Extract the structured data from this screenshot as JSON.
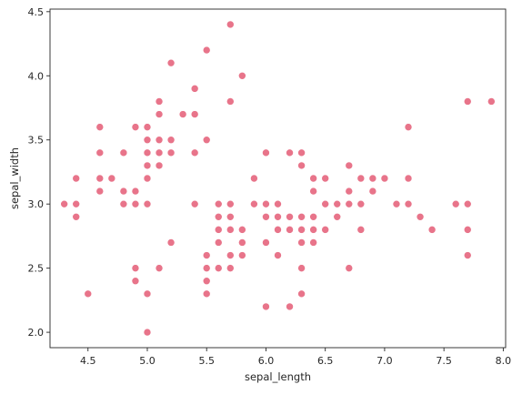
{
  "chart_data": {
    "type": "scatter",
    "xlabel": "sepal_length",
    "ylabel": "sepal_width",
    "xlim": [
      4.18,
      8.02
    ],
    "ylim": [
      1.88,
      4.52
    ],
    "xticks": [
      "4.5",
      "5.0",
      "5.5",
      "6.0",
      "6.5",
      "7.0",
      "7.5",
      "8.0"
    ],
    "yticks": [
      "2.0",
      "2.5",
      "3.0",
      "3.5",
      "4.0",
      "4.5"
    ],
    "grid": false,
    "marker_color": "#e8748a",
    "series": [
      {
        "x": [
          5.1,
          4.9,
          4.7,
          4.6,
          5.0,
          5.4,
          4.6,
          5.0,
          4.4,
          4.9,
          5.4,
          4.8,
          4.8,
          4.3,
          5.8,
          5.7,
          5.4,
          5.1,
          5.7,
          5.1,
          5.4,
          5.1,
          4.6,
          5.1,
          4.8,
          5.0,
          5.0,
          5.2,
          5.2,
          4.7,
          4.8,
          5.4,
          5.2,
          5.5,
          4.9,
          5.0,
          5.5,
          4.9,
          4.4,
          5.1,
          5.0,
          4.5,
          4.4,
          5.0,
          5.1,
          4.8,
          5.1,
          4.6,
          5.3,
          5.0,
          7.0,
          6.4,
          6.9,
          5.5,
          6.5,
          5.7,
          6.3,
          4.9,
          6.6,
          5.2,
          5.0,
          5.9,
          6.0,
          6.1,
          5.6,
          6.7,
          5.6,
          5.8,
          6.2,
          5.6,
          5.9,
          6.1,
          6.3,
          6.1,
          6.4,
          6.6,
          6.8,
          6.7,
          6.0,
          5.7,
          5.5,
          5.5,
          5.8,
          6.0,
          5.4,
          6.0,
          6.7,
          6.3,
          5.6,
          5.5,
          5.5,
          6.1,
          5.8,
          5.0,
          5.6,
          5.7,
          5.7,
          6.2,
          5.1,
          5.7,
          6.3,
          5.8,
          7.1,
          6.3,
          6.5,
          7.6,
          4.9,
          7.3,
          6.7,
          7.2,
          6.5,
          6.4,
          6.8,
          5.7,
          5.8,
          6.4,
          6.5,
          7.7,
          7.7,
          6.0,
          6.9,
          5.6,
          7.7,
          6.3,
          6.7,
          7.2,
          6.2,
          6.1,
          6.4,
          7.2,
          7.4,
          7.9,
          6.4,
          6.3,
          6.1,
          7.7,
          6.3,
          6.4,
          6.0,
          6.9,
          6.7,
          6.9,
          5.8,
          6.8,
          6.7,
          6.7,
          6.3,
          6.5,
          6.2,
          5.9
        ],
        "y": [
          3.5,
          3.0,
          3.2,
          3.1,
          3.6,
          3.9,
          3.4,
          3.4,
          2.9,
          3.1,
          3.7,
          3.4,
          3.0,
          3.0,
          4.0,
          4.4,
          3.9,
          3.5,
          3.8,
          3.8,
          3.4,
          3.7,
          3.6,
          3.3,
          3.4,
          3.0,
          3.4,
          3.5,
          3.4,
          3.2,
          3.1,
          3.4,
          4.1,
          4.2,
          3.1,
          3.2,
          3.5,
          3.6,
          3.0,
          3.4,
          3.5,
          2.3,
          3.2,
          3.5,
          3.8,
          3.0,
          3.8,
          3.2,
          3.7,
          3.3,
          3.2,
          3.2,
          3.1,
          2.3,
          2.8,
          2.8,
          3.3,
          2.4,
          2.9,
          2.7,
          2.0,
          3.0,
          2.2,
          2.9,
          2.9,
          3.1,
          3.0,
          2.7,
          2.2,
          2.5,
          3.2,
          2.8,
          2.5,
          2.8,
          2.9,
          3.0,
          2.8,
          3.0,
          2.9,
          2.6,
          2.4,
          2.4,
          2.7,
          2.7,
          3.0,
          3.4,
          3.1,
          2.3,
          3.0,
          2.5,
          2.6,
          3.0,
          2.6,
          2.3,
          2.7,
          3.0,
          2.9,
          2.9,
          2.5,
          2.8,
          3.3,
          2.7,
          3.0,
          2.9,
          3.0,
          3.0,
          2.5,
          2.9,
          2.5,
          3.6,
          3.2,
          2.7,
          3.0,
          2.5,
          2.8,
          3.2,
          3.0,
          3.8,
          2.6,
          2.2,
          3.2,
          2.8,
          2.8,
          2.7,
          3.3,
          3.2,
          2.8,
          3.0,
          2.8,
          3.0,
          2.8,
          3.8,
          2.8,
          2.8,
          2.6,
          3.0,
          3.4,
          3.1,
          3.0,
          3.1,
          3.1,
          3.1,
          2.7,
          3.2,
          3.3,
          3.0,
          2.5,
          3.0,
          3.4,
          3.0
        ]
      }
    ]
  }
}
